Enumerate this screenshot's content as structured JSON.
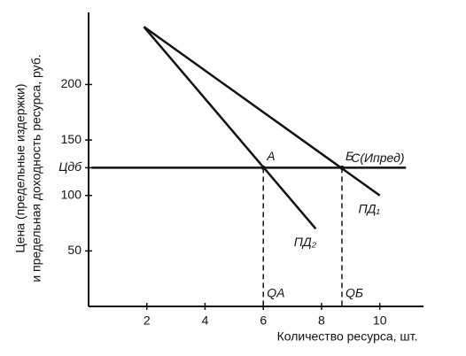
{
  "chart_data": {
    "type": "line",
    "x_label": "Количество ресурса, шт.",
    "y_label": [
      "Цена (предельные издержки)",
      "и предельная доходность ресурса, руб."
    ],
    "xlim": [
      0,
      11.5
    ],
    "ylim": [
      0,
      265
    ],
    "xticks": [
      2,
      4,
      6,
      8,
      10
    ],
    "yticks": [
      50,
      100,
      {
        "value": 125,
        "label": "Цдб"
      },
      150,
      200
    ],
    "series": [
      {
        "name": "ПД₁",
        "color": "#111111",
        "x": [
          1.9,
          10
        ],
        "values": [
          252,
          100
        ]
      },
      {
        "name": "ПД₂",
        "color": "#111111",
        "x": [
          1.9,
          7.8
        ],
        "values": [
          252,
          70
        ]
      },
      {
        "name": "С(Ипред)",
        "color": "#111111",
        "x": [
          0.1,
          10.9
        ],
        "values": [
          125,
          125
        ]
      }
    ],
    "points": [
      {
        "label": "A",
        "x": 6,
        "y": 125,
        "x_label": "QA"
      },
      {
        "label": "Б",
        "x": 8.7,
        "y": 125,
        "x_label": "QБ"
      }
    ]
  }
}
